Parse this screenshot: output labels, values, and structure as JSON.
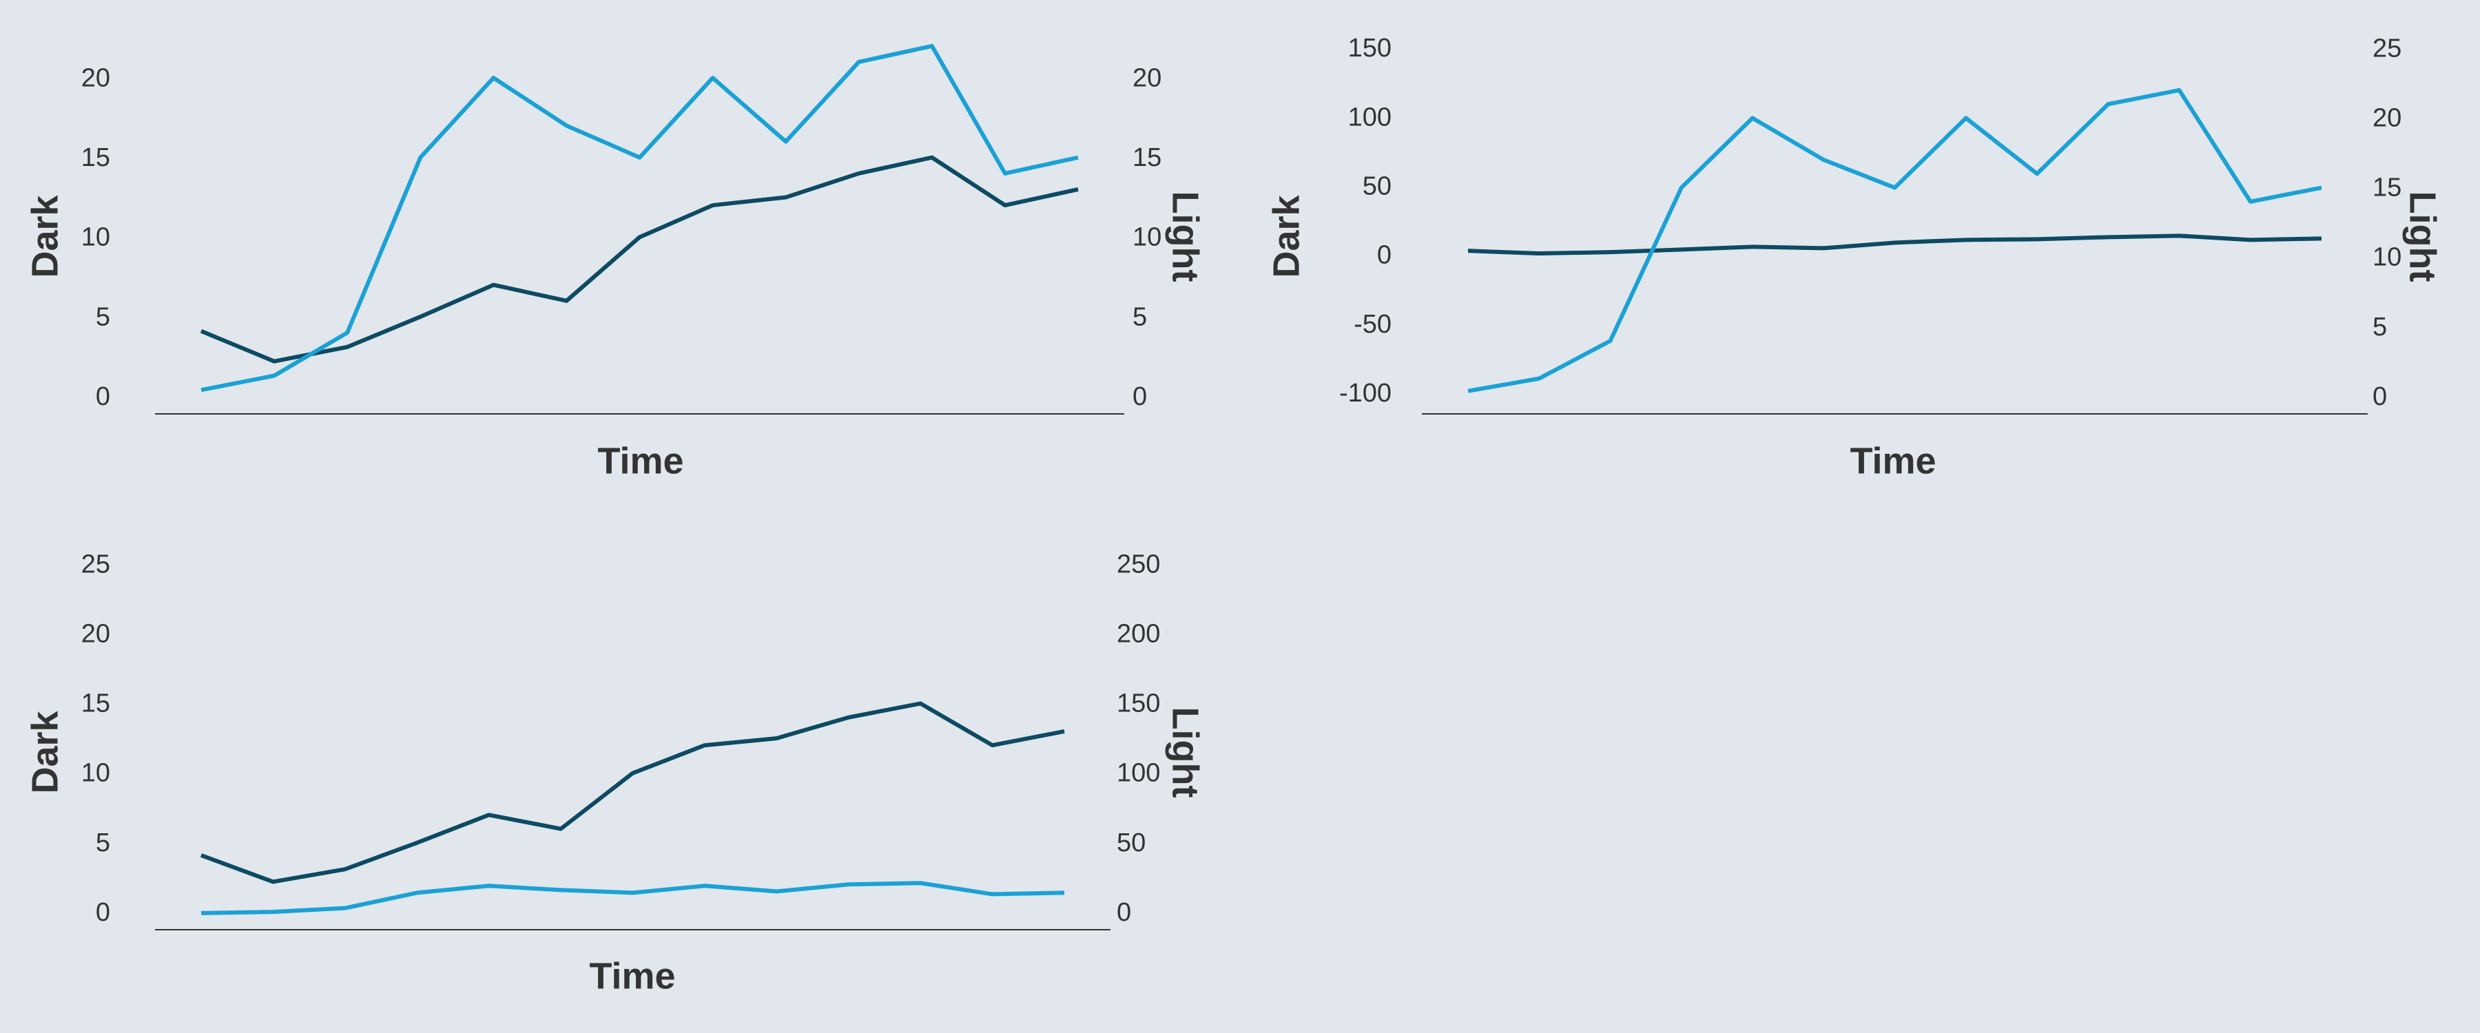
{
  "chart_data": [
    {
      "type": "line",
      "xlabel": "Time",
      "ylabel": "Dark",
      "y2label": "Light",
      "categories": [
        null,
        null,
        null,
        null,
        null,
        null,
        null,
        null,
        null,
        null,
        null,
        null,
        null
      ],
      "series": [
        {
          "color": "#0d4a63",
          "axis": "y",
          "values": [
            4.2,
            2.3,
            3.2,
            5.1,
            7.1,
            6.1,
            10.1,
            12.1,
            12.6,
            14.1,
            15.1,
            12.1,
            13.1
          ]
        },
        {
          "color": "#1ba1d6",
          "axis": "y2",
          "values": [
            0.5,
            1.4,
            4.1,
            15.1,
            20.1,
            17.1,
            15.1,
            20.1,
            16.1,
            21.1,
            22.1,
            14.1,
            15.1
          ]
        }
      ],
      "ylim": [
        -1,
        23
      ],
      "yticks": [
        0,
        5,
        10,
        15,
        20
      ],
      "y2lim": [
        -1,
        23
      ],
      "y2ticks": [
        0,
        5,
        10,
        15,
        20
      ],
      "grid": false
    },
    {
      "type": "line",
      "xlabel": "Time",
      "ylabel": "Dark",
      "y2label": "Light",
      "categories": [
        null,
        null,
        null,
        null,
        null,
        null,
        null,
        null,
        null,
        null,
        null,
        null,
        null
      ],
      "series": [
        {
          "color": "#0d4a63",
          "axis": "y",
          "values": [
            4.2,
            2.3,
            3.2,
            5.1,
            7.1,
            6.1,
            10.1,
            12.1,
            12.6,
            14.1,
            15.1,
            12.1,
            13.1
          ]
        },
        {
          "color": "#1ba1d6",
          "axis": "y2",
          "values": [
            0.5,
            1.4,
            4.1,
            15.1,
            20.1,
            17.1,
            15.1,
            20.1,
            16.1,
            21.1,
            22.1,
            14.1,
            15.1
          ]
        }
      ],
      "ylim": [
        -114,
        163
      ],
      "yticks": [
        -100,
        -50,
        0,
        50,
        100,
        150
      ],
      "y2lim": [
        -1.14,
        26.3
      ],
      "y2ticks": [
        0,
        5,
        10,
        15,
        20,
        25
      ],
      "grid": false
    },
    {
      "type": "line",
      "xlabel": "Time",
      "ylabel": "Dark",
      "y2label": "Light",
      "categories": [
        null,
        null,
        null,
        null,
        null,
        null,
        null,
        null,
        null,
        null,
        null,
        null,
        null
      ],
      "series": [
        {
          "color": "#0d4a63",
          "axis": "y",
          "values": [
            4.2,
            2.3,
            3.2,
            5.1,
            7.1,
            6.1,
            10.1,
            12.1,
            12.6,
            14.1,
            15.1,
            12.1,
            13.1
          ]
        },
        {
          "color": "#1ba1d6",
          "axis": "y2",
          "values": [
            0.5,
            1.4,
            4.1,
            15.1,
            20.1,
            17.1,
            15.1,
            20.1,
            16.1,
            21.1,
            22.1,
            14.1,
            15.1
          ]
        }
      ],
      "ylim": [
        -1.14,
        26.3
      ],
      "yticks": [
        0,
        5,
        10,
        15,
        20,
        25
      ],
      "y2lim": [
        -11.4,
        263
      ],
      "y2ticks": [
        0,
        50,
        100,
        150,
        200,
        250
      ],
      "grid": false
    }
  ]
}
